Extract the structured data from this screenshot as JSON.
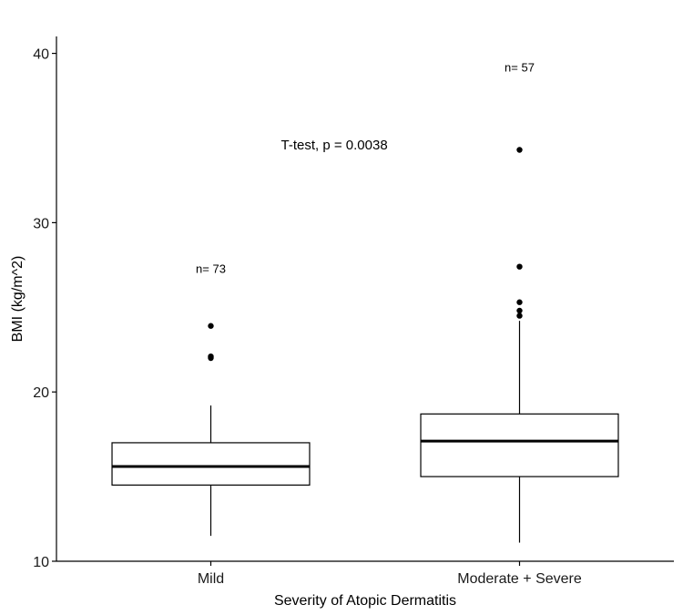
{
  "chart_data": {
    "type": "boxplot",
    "xlabel": "Severity of Atopic Dermatitis",
    "ylabel": "BMI (kg/m^2)",
    "ylim": [
      10,
      41
    ],
    "yticks": [
      10,
      20,
      30,
      40
    ],
    "grid": false,
    "categories": [
      "Mild",
      "Moderate + Severe"
    ],
    "boxes": [
      {
        "category": "Mild",
        "q1": 14.5,
        "median": 15.6,
        "q3": 17.0,
        "whisker_low": 11.5,
        "whisker_high": 19.2,
        "outliers": [
          22.0,
          22.1,
          23.9
        ],
        "n_label": "n= 73",
        "n_label_y": 27.3
      },
      {
        "category": "Moderate + Severe",
        "q1": 15.0,
        "median": 17.1,
        "q3": 18.7,
        "whisker_low": 11.1,
        "whisker_high": 24.2,
        "outliers": [
          24.5,
          24.8,
          25.3,
          27.4,
          34.3
        ],
        "n_label": "n= 57",
        "n_label_y": 39.2
      }
    ],
    "annotation": {
      "text": "T-test, p = 0.0038",
      "x": 1.4,
      "y": 34.6
    }
  }
}
